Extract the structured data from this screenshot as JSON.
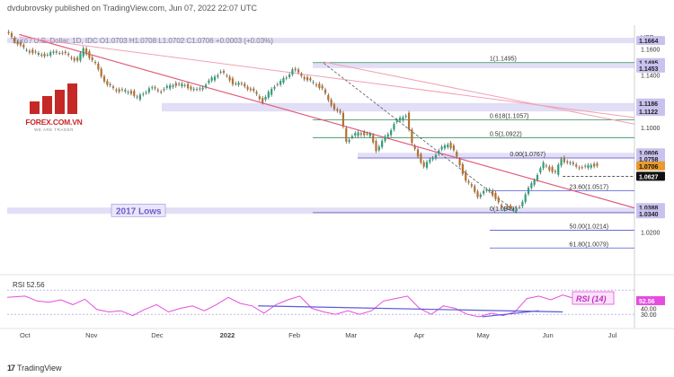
{
  "header": {
    "text": "dvdubrovsky published on TradingView.com, Jun 07, 2022 22:07 UTC"
  },
  "symbol_line": {
    "text": "Euro / U.S. Dollar, 1D, IDC  O1.0703  H1.0708  L1.0702  C1.0706  +0.0003 (+0.03%)"
  },
  "logo": {
    "name": "FOREX.COM.VN",
    "tagline": "WE ARE TRADER"
  },
  "footer": {
    "brand": "TradingView"
  },
  "chart_data": {
    "type": "candlestick",
    "currency": "USD",
    "x_labels": [
      "Oct",
      "Nov",
      "Dec",
      "2022",
      "Feb",
      "Mar",
      "Apr",
      "May",
      "Jun",
      "Jul"
    ],
    "y_ticks": [
      "1.1600",
      "1.1400",
      "1.1000",
      "1.0800",
      "1.0200"
    ],
    "ylim": [
      0.993,
      1.174
    ],
    "price_series": [
      [
        0,
        1.173
      ],
      [
        6,
        1.16
      ],
      [
        12,
        1.155
      ],
      [
        18,
        1.158
      ],
      [
        24,
        1.151
      ],
      [
        26,
        1.16
      ],
      [
        30,
        1.148
      ],
      [
        34,
        1.132
      ],
      [
        38,
        1.128
      ],
      [
        42,
        1.127
      ],
      [
        44,
        1.122
      ],
      [
        48,
        1.13
      ],
      [
        52,
        1.128
      ],
      [
        56,
        1.133
      ],
      [
        60,
        1.132
      ],
      [
        64,
        1.128
      ],
      [
        68,
        1.135
      ],
      [
        72,
        1.143
      ],
      [
        76,
        1.134
      ],
      [
        80,
        1.132
      ],
      [
        84,
        1.125
      ],
      [
        86,
        1.12
      ],
      [
        90,
        1.132
      ],
      [
        94,
        1.138
      ],
      [
        96,
        1.145
      ],
      [
        98,
        1.141
      ],
      [
        102,
        1.135
      ],
      [
        106,
        1.13
      ],
      [
        108,
        1.12
      ],
      [
        112,
        1.11
      ],
      [
        114,
        1.09
      ],
      [
        118,
        1.096
      ],
      [
        122,
        1.094
      ],
      [
        124,
        1.083
      ],
      [
        128,
        1.095
      ],
      [
        130,
        1.103
      ],
      [
        134,
        1.11
      ],
      [
        136,
        1.087
      ],
      [
        140,
        1.07
      ],
      [
        144,
        1.08
      ],
      [
        148,
        1.088
      ],
      [
        150,
        1.082
      ],
      [
        154,
        1.06
      ],
      [
        158,
        1.048
      ],
      [
        162,
        1.053
      ],
      [
        166,
        1.038
      ],
      [
        168,
        1.04
      ],
      [
        170,
        1.036
      ],
      [
        172,
        1.04
      ],
      [
        176,
        1.057
      ],
      [
        180,
        1.072
      ],
      [
        184,
        1.065
      ],
      [
        186,
        1.076
      ],
      [
        190,
        1.071
      ],
      [
        194,
        1.069
      ],
      [
        196,
        1.072
      ],
      [
        198,
        1.0706
      ]
    ],
    "x_tick_index": {
      "Oct": 6,
      "Nov": 28,
      "Dec": 50,
      "2022": 73,
      "Feb": 96,
      "Mar": 115,
      "Apr": 138,
      "May": 159,
      "Jun": 181,
      "Jul": 203
    },
    "horizontal_zones": [
      {
        "label": "1.1664",
        "value": 1.1664
      },
      {
        "label": "1.1495",
        "value": 1.1495
      },
      {
        "label": "1.1453",
        "value": 1.1453
      },
      {
        "label": "1.1186",
        "value": 1.1186
      },
      {
        "label": "1.1122",
        "value": 1.1122
      },
      {
        "label": "1.0806",
        "value": 1.0806
      },
      {
        "label": "1.0758",
        "value": 1.0758
      },
      {
        "label": "1.0706",
        "value": 1.0706
      },
      {
        "label": "1.0627",
        "value": 1.0627
      },
      {
        "label": "1.0388",
        "value": 1.0388
      },
      {
        "label": "1.0340",
        "value": 1.034
      }
    ],
    "fib_levels": [
      {
        "label": "1(1.1495)",
        "value": 1.1495
      },
      {
        "label": "0.618(1.1057)",
        "value": 1.1057
      },
      {
        "label": "0.5(1.0922)",
        "value": 1.0922
      },
      {
        "label": "0.00(1.0767)",
        "value": 1.0767
      },
      {
        "label": "23.60(1.0517)",
        "value": 1.0517
      },
      {
        "label": "0(1.0349)",
        "value": 1.0349
      },
      {
        "label": "50.00(1.0214)",
        "value": 1.0214
      },
      {
        "label": "61.80(1.0079)",
        "value": 1.0079
      }
    ],
    "annotations": [
      {
        "text": "2017 Lows"
      }
    ],
    "rsi": {
      "label": "RSI 52.56",
      "badge": "RSI (14)",
      "current": "52.56",
      "ticks": [
        "40.00",
        "30.00"
      ],
      "ylim": [
        20,
        85
      ],
      "values": [
        [
          0,
          58
        ],
        [
          6,
          60
        ],
        [
          10,
          52
        ],
        [
          14,
          50
        ],
        [
          18,
          54
        ],
        [
          22,
          46
        ],
        [
          26,
          55
        ],
        [
          30,
          38
        ],
        [
          34,
          34
        ],
        [
          38,
          36
        ],
        [
          42,
          28
        ],
        [
          46,
          38
        ],
        [
          50,
          46
        ],
        [
          54,
          34
        ],
        [
          58,
          40
        ],
        [
          62,
          44
        ],
        [
          66,
          36
        ],
        [
          70,
          46
        ],
        [
          74,
          58
        ],
        [
          78,
          48
        ],
        [
          82,
          44
        ],
        [
          86,
          32
        ],
        [
          90,
          46
        ],
        [
          94,
          54
        ],
        [
          98,
          60
        ],
        [
          102,
          40
        ],
        [
          106,
          34
        ],
        [
          110,
          30
        ],
        [
          114,
          36
        ],
        [
          118,
          30
        ],
        [
          122,
          36
        ],
        [
          126,
          52
        ],
        [
          130,
          56
        ],
        [
          134,
          60
        ],
        [
          138,
          40
        ],
        [
          142,
          30
        ],
        [
          146,
          44
        ],
        [
          150,
          40
        ],
        [
          154,
          30
        ],
        [
          158,
          26
        ],
        [
          162,
          32
        ],
        [
          166,
          28
        ],
        [
          170,
          34
        ],
        [
          174,
          56
        ],
        [
          178,
          60
        ],
        [
          182,
          54
        ],
        [
          186,
          62
        ],
        [
          190,
          56
        ],
        [
          194,
          53
        ],
        [
          198,
          52.56
        ]
      ]
    }
  }
}
